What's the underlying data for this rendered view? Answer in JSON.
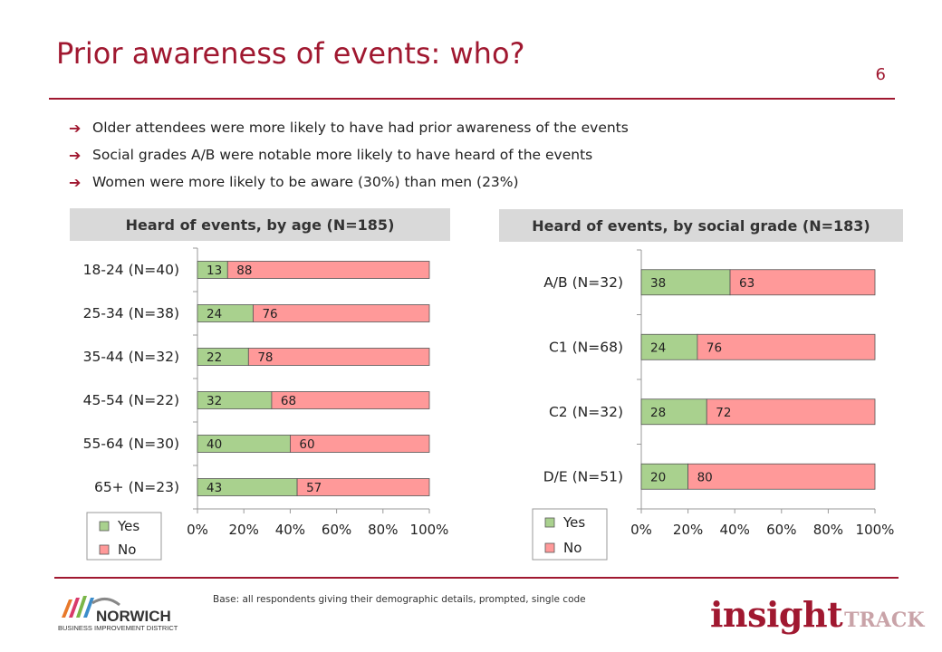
{
  "title": "Prior awareness of events: who?",
  "page_number": "6",
  "bullets": [
    "Older attendees were more likely to have had prior awareness of the events",
    "Social grades A/B were notable more likely to have heard of the events",
    "Women were more likely to be aware (30%) than men (23%)"
  ],
  "base_note": "Base: all respondents giving their demographic details, prompted, single code",
  "logos": {
    "norwich_main": "NORWICH",
    "norwich_sub": "BUSINESS IMPROVEMENT DISTRICT",
    "insight_main": "insight",
    "insight_sub": "TRACK"
  },
  "colors": {
    "accent": "#A01830",
    "yes": "#A9D18E",
    "no": "#FF9999"
  },
  "chart_data": [
    {
      "type": "bar",
      "orientation": "horizontal",
      "stacked": true,
      "title": "Heard of events, by age (N=185)",
      "categories": [
        "18-24 (N=40)",
        "25-34 (N=38)",
        "35-44 (N=32)",
        "45-54 (N=22)",
        "55-64 (N=30)",
        "65+ (N=23)"
      ],
      "series": [
        {
          "name": "Yes",
          "values": [
            13,
            24,
            22,
            32,
            40,
            43
          ]
        },
        {
          "name": "No",
          "values": [
            88,
            76,
            78,
            68,
            60,
            57
          ]
        }
      ],
      "xlim": [
        0,
        100
      ],
      "x_ticks": [
        "0%",
        "20%",
        "40%",
        "60%",
        "80%",
        "100%"
      ],
      "legend": "bottom-left",
      "grid": false
    },
    {
      "type": "bar",
      "orientation": "horizontal",
      "stacked": true,
      "title": "Heard of events, by social grade (N=183)",
      "categories": [
        "A/B (N=32)",
        "C1 (N=68)",
        "C2 (N=32)",
        "D/E (N=51)"
      ],
      "series": [
        {
          "name": "Yes",
          "values": [
            38,
            24,
            28,
            20
          ]
        },
        {
          "name": "No",
          "values": [
            63,
            76,
            72,
            80
          ]
        }
      ],
      "xlim": [
        0,
        100
      ],
      "x_ticks": [
        "0%",
        "20%",
        "40%",
        "60%",
        "80%",
        "100%"
      ],
      "legend": "bottom-left",
      "grid": false
    }
  ]
}
